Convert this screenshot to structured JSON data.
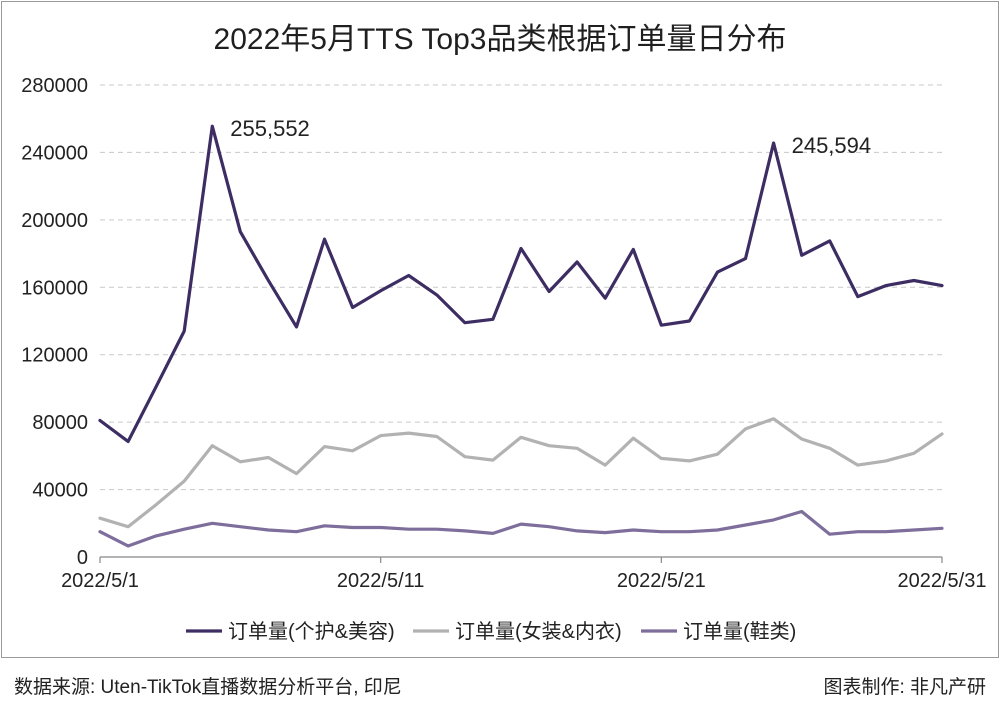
{
  "footer": {
    "source": "数据来源: Uten-TikTok直播数据分析平台, 印尼",
    "credit": "图表制作: 非凡产研"
  },
  "chart_data": {
    "type": "line",
    "title": "2022年5月TTS Top3品类根据订单量日分布",
    "xlabel": "",
    "ylabel": "",
    "ylim": [
      0,
      280000
    ],
    "yticks": [
      "0",
      "40000",
      "80000",
      "120000",
      "160000",
      "200000",
      "240000",
      "280000"
    ],
    "x_tick_labels": [
      "2022/5/1",
      "2022/5/11",
      "2022/5/21",
      "2022/5/31"
    ],
    "grid": "horizontal dashed",
    "legend_position": "bottom",
    "series": [
      {
        "name": "订单量(个护&美容)",
        "color": "#3d2d63",
        "values": [
          81000,
          68500,
          101000,
          134000,
          255552,
          193000,
          164000,
          136500,
          188500,
          148000,
          158000,
          167000,
          155500,
          139000,
          141000,
          183000,
          157500,
          175000,
          153500,
          182500,
          137500,
          140000,
          169000,
          177000,
          245594,
          179000,
          187500,
          154500,
          161000,
          164000,
          161000
        ]
      },
      {
        "name": "订单量(女装&内衣)",
        "color": "#b2b2b2",
        "values": [
          23000,
          18000,
          31000,
          45000,
          66000,
          56500,
          59000,
          49500,
          65500,
          63000,
          72000,
          73500,
          71500,
          59500,
          57500,
          71000,
          66000,
          64500,
          54500,
          70500,
          58500,
          57000,
          61000,
          76000,
          82000,
          70000,
          64500,
          54500,
          57000,
          61500,
          73000
        ]
      },
      {
        "name": "订单量(鞋类)",
        "color": "#7e6e9b",
        "values": [
          15000,
          6500,
          12500,
          16500,
          20000,
          18000,
          16000,
          15000,
          18500,
          17500,
          17500,
          16500,
          16500,
          15500,
          14000,
          19500,
          18000,
          15500,
          14500,
          16000,
          15000,
          15000,
          16000,
          19000,
          22000,
          27000,
          13500,
          15000,
          15000,
          16000,
          17000
        ]
      }
    ],
    "annotations": [
      {
        "series": 0,
        "index": 4,
        "text": "255,552"
      },
      {
        "series": 0,
        "index": 24,
        "text": "245,594"
      }
    ]
  }
}
